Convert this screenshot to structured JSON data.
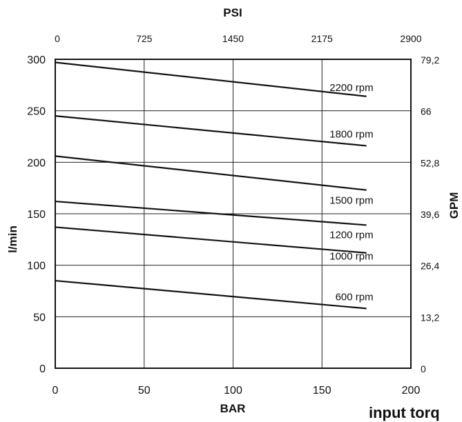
{
  "chart_data": {
    "type": "line",
    "xlabel": "BAR",
    "ylabel": "l/min",
    "x2label": "PSI",
    "y2label": "GPM",
    "xlim": [
      0,
      200
    ],
    "ylim": [
      0,
      300
    ],
    "x_ticks": [
      "0",
      "50",
      "100",
      "150",
      "200"
    ],
    "y_ticks": [
      "0",
      "50",
      "100",
      "150",
      "200",
      "250",
      "300"
    ],
    "x2_ticks": [
      "0",
      "725",
      "1450",
      "2175",
      "2900"
    ],
    "y2_ticks": [
      "0",
      "13,2",
      "26,4",
      "39,6",
      "52,8",
      "66",
      "79,2"
    ],
    "grid": true,
    "series": [
      {
        "name": "2200 rpm",
        "x": [
          0,
          175
        ],
        "y": [
          297,
          264
        ]
      },
      {
        "name": "1800 rpm",
        "x": [
          0,
          175
        ],
        "y": [
          245,
          216
        ]
      },
      {
        "name": "1500 rpm",
        "x": [
          0,
          175
        ],
        "y": [
          206,
          173
        ]
      },
      {
        "name": "1200 rpm",
        "x": [
          0,
          175
        ],
        "y": [
          162,
          139
        ]
      },
      {
        "name": "1000 rpm",
        "x": [
          0,
          175
        ],
        "y": [
          137,
          112
        ]
      },
      {
        "name": "600 rpm",
        "x": [
          0,
          175
        ],
        "y": [
          85,
          58
        ]
      }
    ]
  },
  "footer_text": "input torq"
}
